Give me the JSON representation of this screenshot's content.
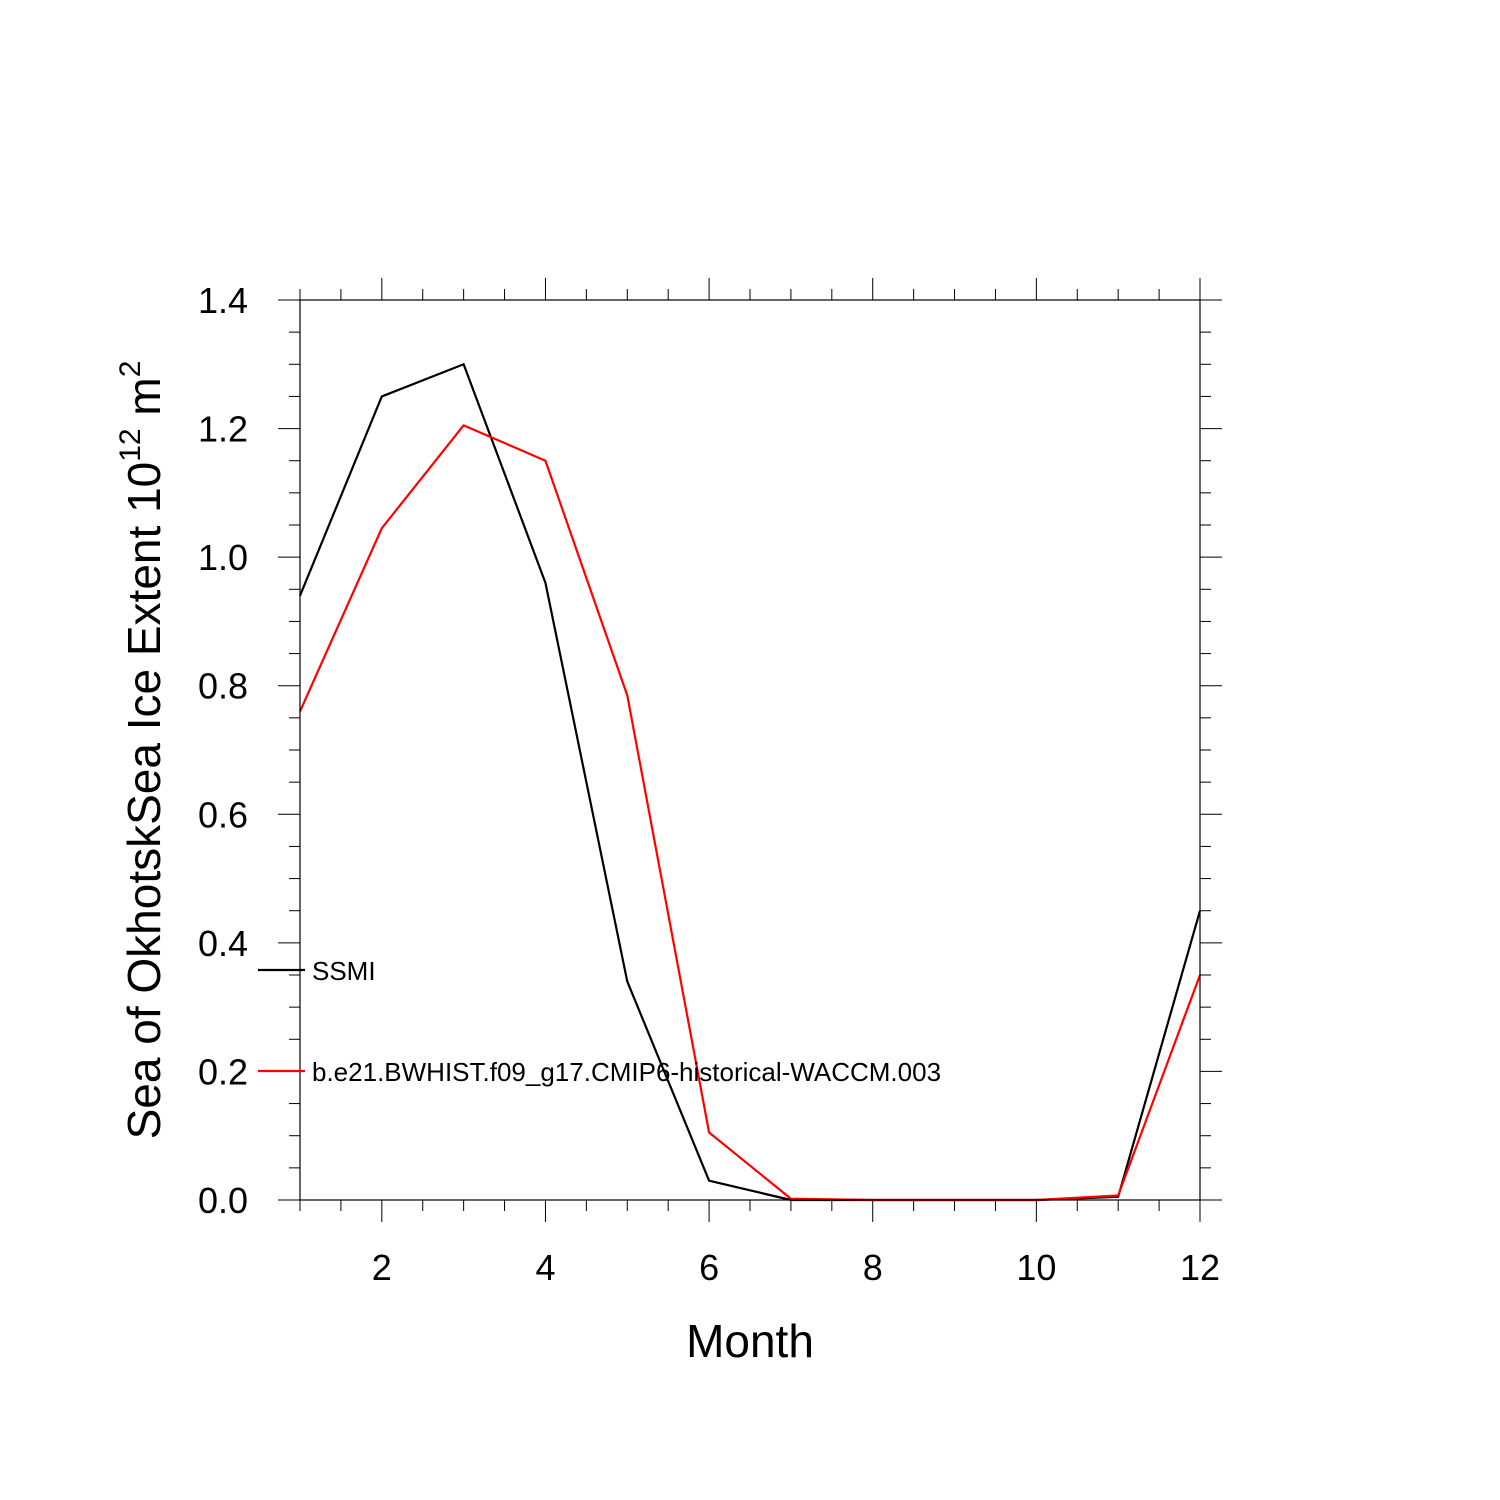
{
  "chart_data": {
    "type": "line",
    "xlabel": "Month",
    "ylabel_text": "Sea of OkhotskSea Ice Extent 10",
    "ylabel_exponent": "12",
    "ylabel_unit": " m",
    "ylabel_unit_exponent": "2",
    "xlim": [
      1,
      12
    ],
    "ylim": [
      0,
      1.4
    ],
    "x_ticks": [
      "2",
      "4",
      "6",
      "8",
      "10",
      "12"
    ],
    "y_ticks": [
      "0.0",
      "0.2",
      "0.4",
      "0.6",
      "0.8",
      "1.0",
      "1.2",
      "1.4"
    ],
    "x": [
      1,
      2,
      3,
      4,
      5,
      6,
      7,
      8,
      9,
      10,
      11,
      12
    ],
    "series": [
      {
        "name": "SSMI",
        "color": "#000000",
        "values": [
          0.94,
          1.25,
          1.3,
          0.96,
          0.34,
          0.03,
          0.0,
          0.0,
          0.0,
          0.0,
          0.005,
          0.45
        ]
      },
      {
        "name": "b.e21.BWHIST.f09_g17.CMIP6-historical-WACCM.003",
        "color": "#ff0000",
        "values": [
          0.76,
          1.045,
          1.205,
          1.15,
          0.785,
          0.105,
          0.002,
          0.0,
          0.0,
          0.0,
          0.007,
          0.35
        ]
      }
    ],
    "legend_position": "inside-left"
  }
}
